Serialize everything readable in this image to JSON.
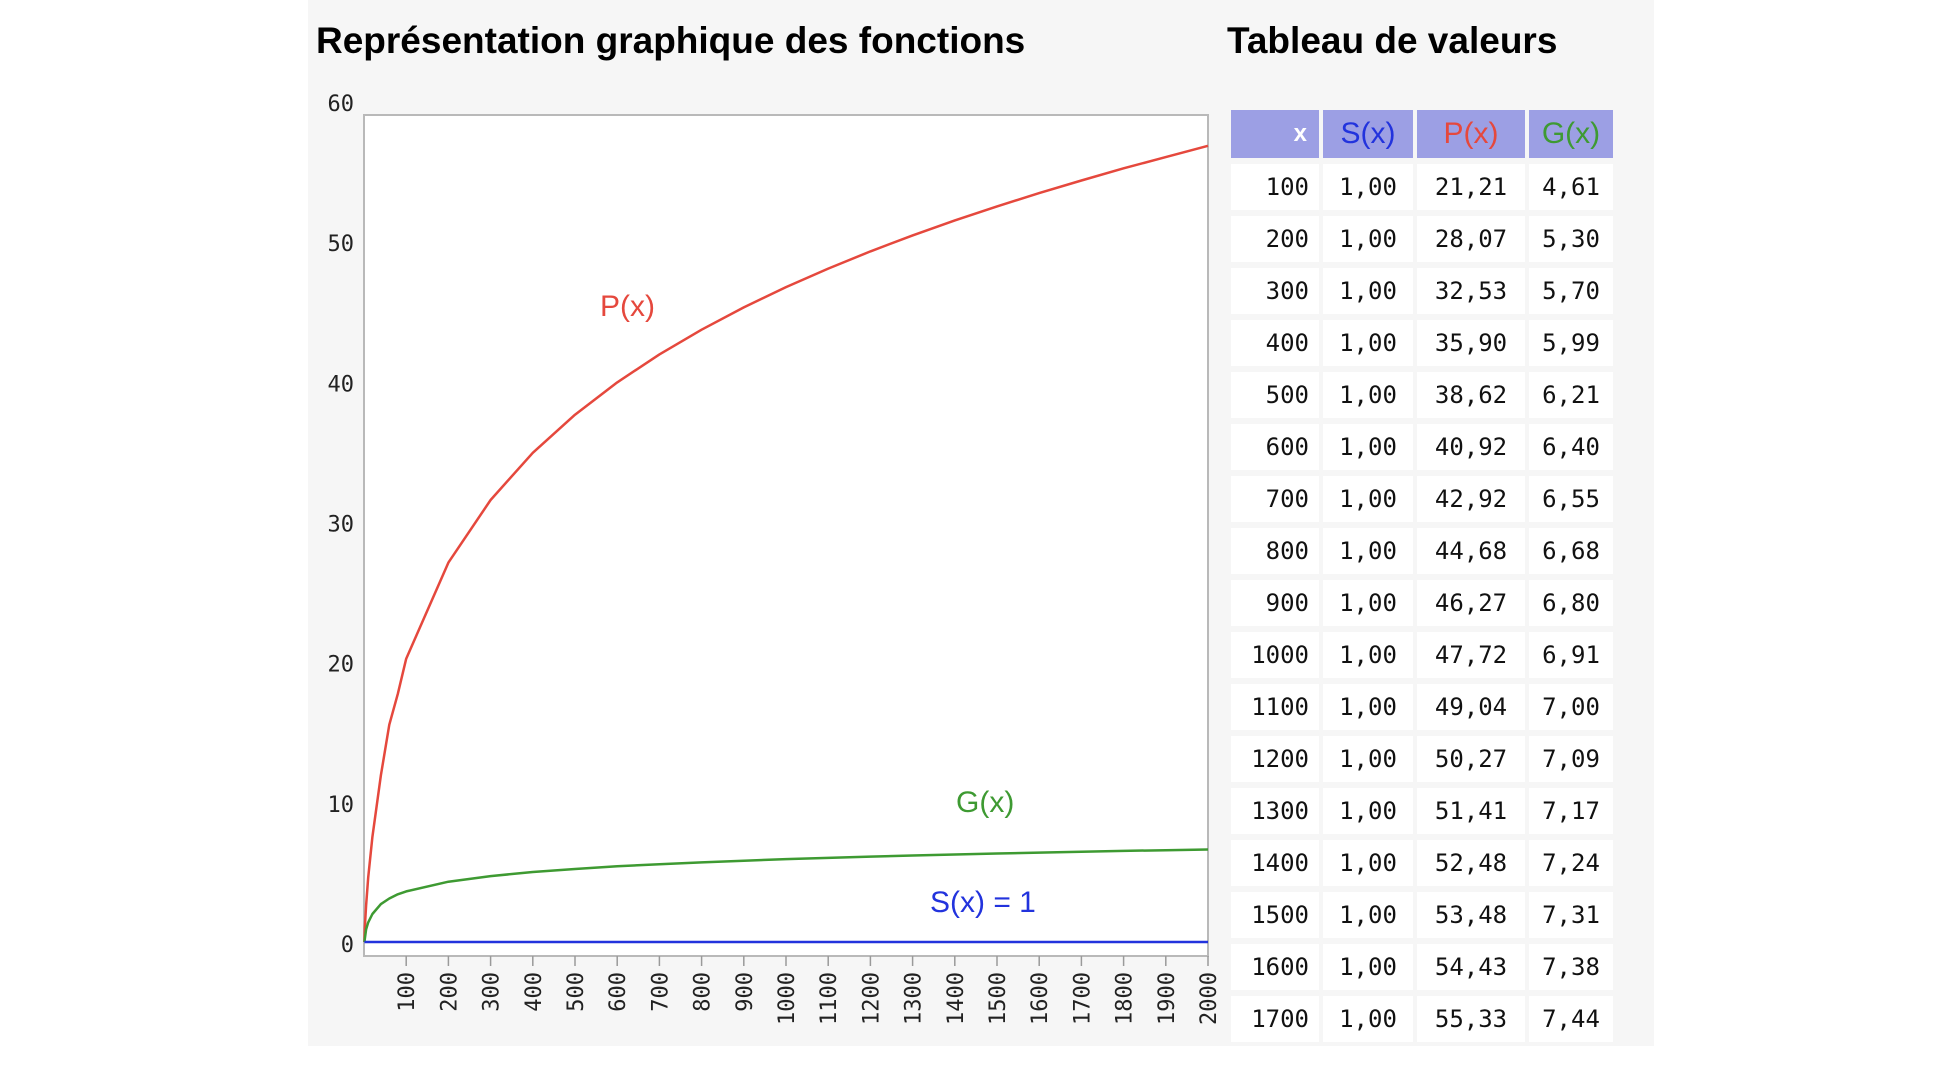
{
  "headings": {
    "chart": "Représentation graphique des fonctions",
    "table": "Tableau de valeurs"
  },
  "colors": {
    "S": "#2233dd",
    "P": "#e5483d",
    "G": "#3e9a32",
    "header_bg": "#9c9fe4"
  },
  "chart_data": {
    "type": "line",
    "xlim": [
      0,
      2000
    ],
    "ylim": [
      0,
      60
    ],
    "x_ticks": [
      "100",
      "200",
      "300",
      "400",
      "500",
      "600",
      "700",
      "800",
      "900",
      "1000",
      "1100",
      "1200",
      "1300",
      "1400",
      "1500",
      "1600",
      "1700",
      "1800",
      "1900",
      "2000"
    ],
    "y_ticks": [
      "0",
      "10",
      "20",
      "30",
      "40",
      "50",
      "60"
    ],
    "grid": true,
    "series": [
      {
        "name": "P(x)",
        "color": "#e5483d",
        "x": [
          1,
          2,
          5,
          10,
          20,
          40,
          60,
          80,
          100,
          200,
          300,
          400,
          500,
          600,
          700,
          800,
          900,
          1000,
          1100,
          1200,
          1300,
          1400,
          1500,
          1600,
          1700,
          1800,
          1900,
          2000
        ],
        "y": [
          1.0,
          2.0,
          3.6,
          5.6,
          8.5,
          12.9,
          16.5,
          18.7,
          21.21,
          28.07,
          32.53,
          35.9,
          38.62,
          40.92,
          42.92,
          44.68,
          46.27,
          47.72,
          49.04,
          50.27,
          51.41,
          52.48,
          53.48,
          54.43,
          55.33,
          56.2,
          57.0,
          57.8
        ]
      },
      {
        "name": "G(x)",
        "color": "#3e9a32",
        "x": [
          1,
          5,
          10,
          20,
          40,
          60,
          80,
          100,
          200,
          300,
          400,
          500,
          600,
          700,
          800,
          900,
          1000,
          1100,
          1200,
          1300,
          1400,
          1500,
          1600,
          1700,
          1800,
          1900,
          2000
        ],
        "y": [
          1.0,
          1.9,
          2.4,
          3.0,
          3.7,
          4.1,
          4.4,
          4.61,
          5.3,
          5.7,
          5.99,
          6.21,
          6.4,
          6.55,
          6.68,
          6.8,
          6.91,
          7.0,
          7.09,
          7.17,
          7.24,
          7.31,
          7.38,
          7.44,
          7.5,
          7.55,
          7.6
        ]
      },
      {
        "name": "S(x) = 1",
        "color": "#2233dd",
        "x": [
          1,
          2000
        ],
        "y": [
          1,
          1
        ]
      }
    ]
  },
  "table": {
    "headers": {
      "x": "x",
      "s": "S(x)",
      "p": "P(x)",
      "g": "G(x)"
    },
    "rows": [
      {
        "x": "100",
        "s": "1,00",
        "p": "21,21",
        "g": "4,61"
      },
      {
        "x": "200",
        "s": "1,00",
        "p": "28,07",
        "g": "5,30"
      },
      {
        "x": "300",
        "s": "1,00",
        "p": "32,53",
        "g": "5,70"
      },
      {
        "x": "400",
        "s": "1,00",
        "p": "35,90",
        "g": "5,99"
      },
      {
        "x": "500",
        "s": "1,00",
        "p": "38,62",
        "g": "6,21"
      },
      {
        "x": "600",
        "s": "1,00",
        "p": "40,92",
        "g": "6,40"
      },
      {
        "x": "700",
        "s": "1,00",
        "p": "42,92",
        "g": "6,55"
      },
      {
        "x": "800",
        "s": "1,00",
        "p": "44,68",
        "g": "6,68"
      },
      {
        "x": "900",
        "s": "1,00",
        "p": "46,27",
        "g": "6,80"
      },
      {
        "x": "1000",
        "s": "1,00",
        "p": "47,72",
        "g": "6,91"
      },
      {
        "x": "1100",
        "s": "1,00",
        "p": "49,04",
        "g": "7,00"
      },
      {
        "x": "1200",
        "s": "1,00",
        "p": "50,27",
        "g": "7,09"
      },
      {
        "x": "1300",
        "s": "1,00",
        "p": "51,41",
        "g": "7,17"
      },
      {
        "x": "1400",
        "s": "1,00",
        "p": "52,48",
        "g": "7,24"
      },
      {
        "x": "1500",
        "s": "1,00",
        "p": "53,48",
        "g": "7,31"
      },
      {
        "x": "1600",
        "s": "1,00",
        "p": "54,43",
        "g": "7,38"
      },
      {
        "x": "1700",
        "s": "1,00",
        "p": "55,33",
        "g": "7,44"
      }
    ]
  }
}
